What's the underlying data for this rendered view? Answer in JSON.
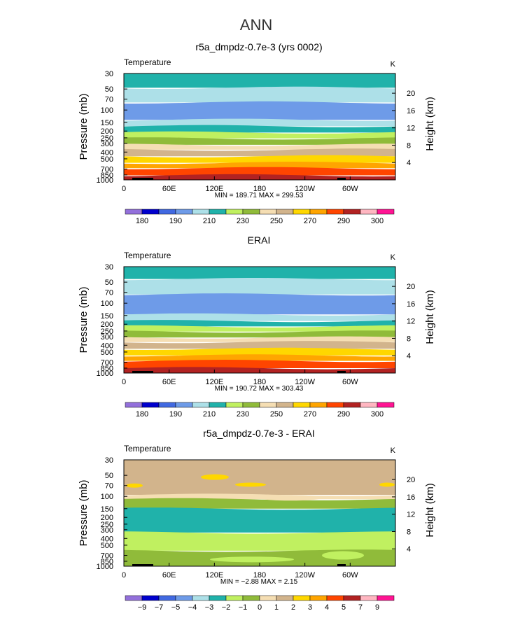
{
  "main_title": "ANN",
  "chart_data": [
    {
      "type": "contour",
      "title": "r5a_dmpdz-0.7e-3 (yrs 0002)",
      "variable": "Temperature",
      "units": "K",
      "xlabel": "",
      "ylabel": "Pressure (mb)",
      "ylabel_right": "Height (km)",
      "x_ticks": [
        "0",
        "60E",
        "120E",
        "180",
        "120W",
        "60W"
      ],
      "y_ticks": [
        "30",
        "50",
        "70",
        "100",
        "150",
        "200",
        "250",
        "300",
        "400",
        "500",
        "700",
        "850",
        "1000"
      ],
      "y_right_ticks": [
        "20",
        "16",
        "12",
        "8",
        "4"
      ],
      "stats": "MIN = 189.71   MAX = 299.53",
      "colorbar_labels": [
        "180",
        "190",
        "210",
        "230",
        "250",
        "270",
        "290",
        "300"
      ],
      "colorbar_colors": [
        "#9370DB",
        "#0000CD",
        "#4169E1",
        "#6E9BE8",
        "#ADE0E8",
        "#20B2AA",
        "#C0F060",
        "#90BB3A",
        "#F5DEB3",
        "#D2B48C",
        "#FFD700",
        "#FFA500",
        "#FF4500",
        "#B22222",
        "#FFB6C1",
        "#FF1493"
      ],
      "bands": [
        {
          "value": "220",
          "color": "#20B2AA",
          "from_mb": 30,
          "to_mb": 48
        },
        {
          "value": "215",
          "color": "#ADE0E8",
          "from_mb": 48,
          "to_mb": 78
        },
        {
          "value": "205",
          "color": "#6E9BE8",
          "from_mb": 78,
          "to_mb": 138
        },
        {
          "value": "215",
          "color": "#ADE0E8",
          "from_mb": 138,
          "to_mb": 170
        },
        {
          "value": "220",
          "color": "#20B2AA",
          "from_mb": 170,
          "to_mb": 210
        },
        {
          "value": "225",
          "color": "#C0F060",
          "from_mb": 210,
          "to_mb": 255
        },
        {
          "value": "235",
          "color": "#90BB3A",
          "from_mb": 255,
          "to_mb": 315
        },
        {
          "value": "245",
          "color": "#F5DEB3",
          "from_mb": 315,
          "to_mb": 370
        },
        {
          "value": "255",
          "color": "#D2B48C",
          "from_mb": 370,
          "to_mb": 460
        },
        {
          "value": "265",
          "color": "#FFD700",
          "from_mb": 460,
          "to_mb": 570
        },
        {
          "value": "275",
          "color": "#FFA500",
          "from_mb": 570,
          "to_mb": 680
        },
        {
          "value": "285",
          "color": "#FF4500",
          "from_mb": 680,
          "to_mb": 860
        },
        {
          "value": "295",
          "color": "#B22222",
          "from_mb": 860,
          "to_mb": 1000
        }
      ]
    },
    {
      "type": "contour",
      "title": "ERAI",
      "variable": "Temperature",
      "units": "K",
      "xlabel": "",
      "ylabel": "Pressure (mb)",
      "ylabel_right": "Height (km)",
      "x_ticks": [
        "0",
        "60E",
        "120E",
        "180",
        "120W",
        "60W"
      ],
      "y_ticks": [
        "30",
        "50",
        "70",
        "100",
        "150",
        "200",
        "250",
        "300",
        "400",
        "500",
        "700",
        "850",
        "1000"
      ],
      "y_right_ticks": [
        "20",
        "16",
        "12",
        "8",
        "4"
      ],
      "stats": "MIN = 190.72   MAX = 303.43",
      "colorbar_labels": [
        "180",
        "190",
        "210",
        "230",
        "250",
        "270",
        "290",
        "300"
      ],
      "colorbar_colors": [
        "#9370DB",
        "#0000CD",
        "#4169E1",
        "#6E9BE8",
        "#ADE0E8",
        "#20B2AA",
        "#C0F060",
        "#90BB3A",
        "#F5DEB3",
        "#D2B48C",
        "#FFD700",
        "#FFA500",
        "#FF4500",
        "#B22222",
        "#FFB6C1",
        "#FF1493"
      ],
      "bands": [
        {
          "value": "220",
          "color": "#20B2AA",
          "from_mb": 30,
          "to_mb": 45
        },
        {
          "value": "215",
          "color": "#ADE0E8",
          "from_mb": 45,
          "to_mb": 75
        },
        {
          "value": "205",
          "color": "#6E9BE8",
          "from_mb": 75,
          "to_mb": 145
        },
        {
          "value": "215",
          "color": "#ADE0E8",
          "from_mb": 145,
          "to_mb": 180
        },
        {
          "value": "220",
          "color": "#20B2AA",
          "from_mb": 180,
          "to_mb": 215
        },
        {
          "value": "225",
          "color": "#C0F060",
          "from_mb": 215,
          "to_mb": 255
        },
        {
          "value": "235",
          "color": "#90BB3A",
          "from_mb": 255,
          "to_mb": 310
        },
        {
          "value": "245",
          "color": "#F5DEB3",
          "from_mb": 310,
          "to_mb": 360
        },
        {
          "value": "255",
          "color": "#D2B48C",
          "from_mb": 360,
          "to_mb": 450
        },
        {
          "value": "265",
          "color": "#FFD700",
          "from_mb": 450,
          "to_mb": 560
        },
        {
          "value": "275",
          "color": "#FFA500",
          "from_mb": 560,
          "to_mb": 670
        },
        {
          "value": "285",
          "color": "#FF4500",
          "from_mb": 670,
          "to_mb": 850
        },
        {
          "value": "295",
          "color": "#B22222",
          "from_mb": 850,
          "to_mb": 1000
        }
      ]
    },
    {
      "type": "contour",
      "title": "r5a_dmpdz-0.7e-3 - ERAI",
      "variable": "Temperature",
      "units": "K",
      "xlabel": "",
      "ylabel": "Pressure (mb)",
      "ylabel_right": "Height (km)",
      "x_ticks": [
        "0",
        "60E",
        "120E",
        "180",
        "120W",
        "60W"
      ],
      "y_ticks": [
        "30",
        "50",
        "70",
        "100",
        "150",
        "200",
        "250",
        "300",
        "400",
        "500",
        "700",
        "850",
        "1000"
      ],
      "y_right_ticks": [
        "20",
        "16",
        "12",
        "8",
        "4"
      ],
      "stats": "MIN = −2.88   MAX =   2.15",
      "colorbar_labels": [
        "−9",
        "−7",
        "−5",
        "−4",
        "−3",
        "−2",
        "−1",
        "0",
        "1",
        "2",
        "3",
        "4",
        "5",
        "7",
        "9"
      ],
      "colorbar_colors": [
        "#9370DB",
        "#0000CD",
        "#4169E1",
        "#6E9BE8",
        "#ADE0E8",
        "#20B2AA",
        "#C0F060",
        "#90BB3A",
        "#F5DEB3",
        "#D2B48C",
        "#FFD700",
        "#FFA500",
        "#FF4500",
        "#B22222",
        "#FFB6C1",
        "#FF1493"
      ],
      "bands": [
        {
          "value": "1.5",
          "color": "#D2B48C",
          "from_mb": 30,
          "to_mb": 95
        },
        {
          "value": "0.5",
          "color": "#F5DEB3",
          "from_mb": 95,
          "to_mb": 110
        },
        {
          "value": "-0.5",
          "color": "#90BB3A",
          "from_mb": 110,
          "to_mb": 150
        },
        {
          "value": "-1.5",
          "color": "#20B2AA",
          "from_mb": 150,
          "to_mb": 330
        },
        {
          "value": "-0.5",
          "color": "#C0F060",
          "from_mb": 330,
          "to_mb": 600
        },
        {
          "value": "-0.5",
          "color": "#90BB3A",
          "from_mb": 600,
          "to_mb": 1000
        }
      ]
    }
  ]
}
